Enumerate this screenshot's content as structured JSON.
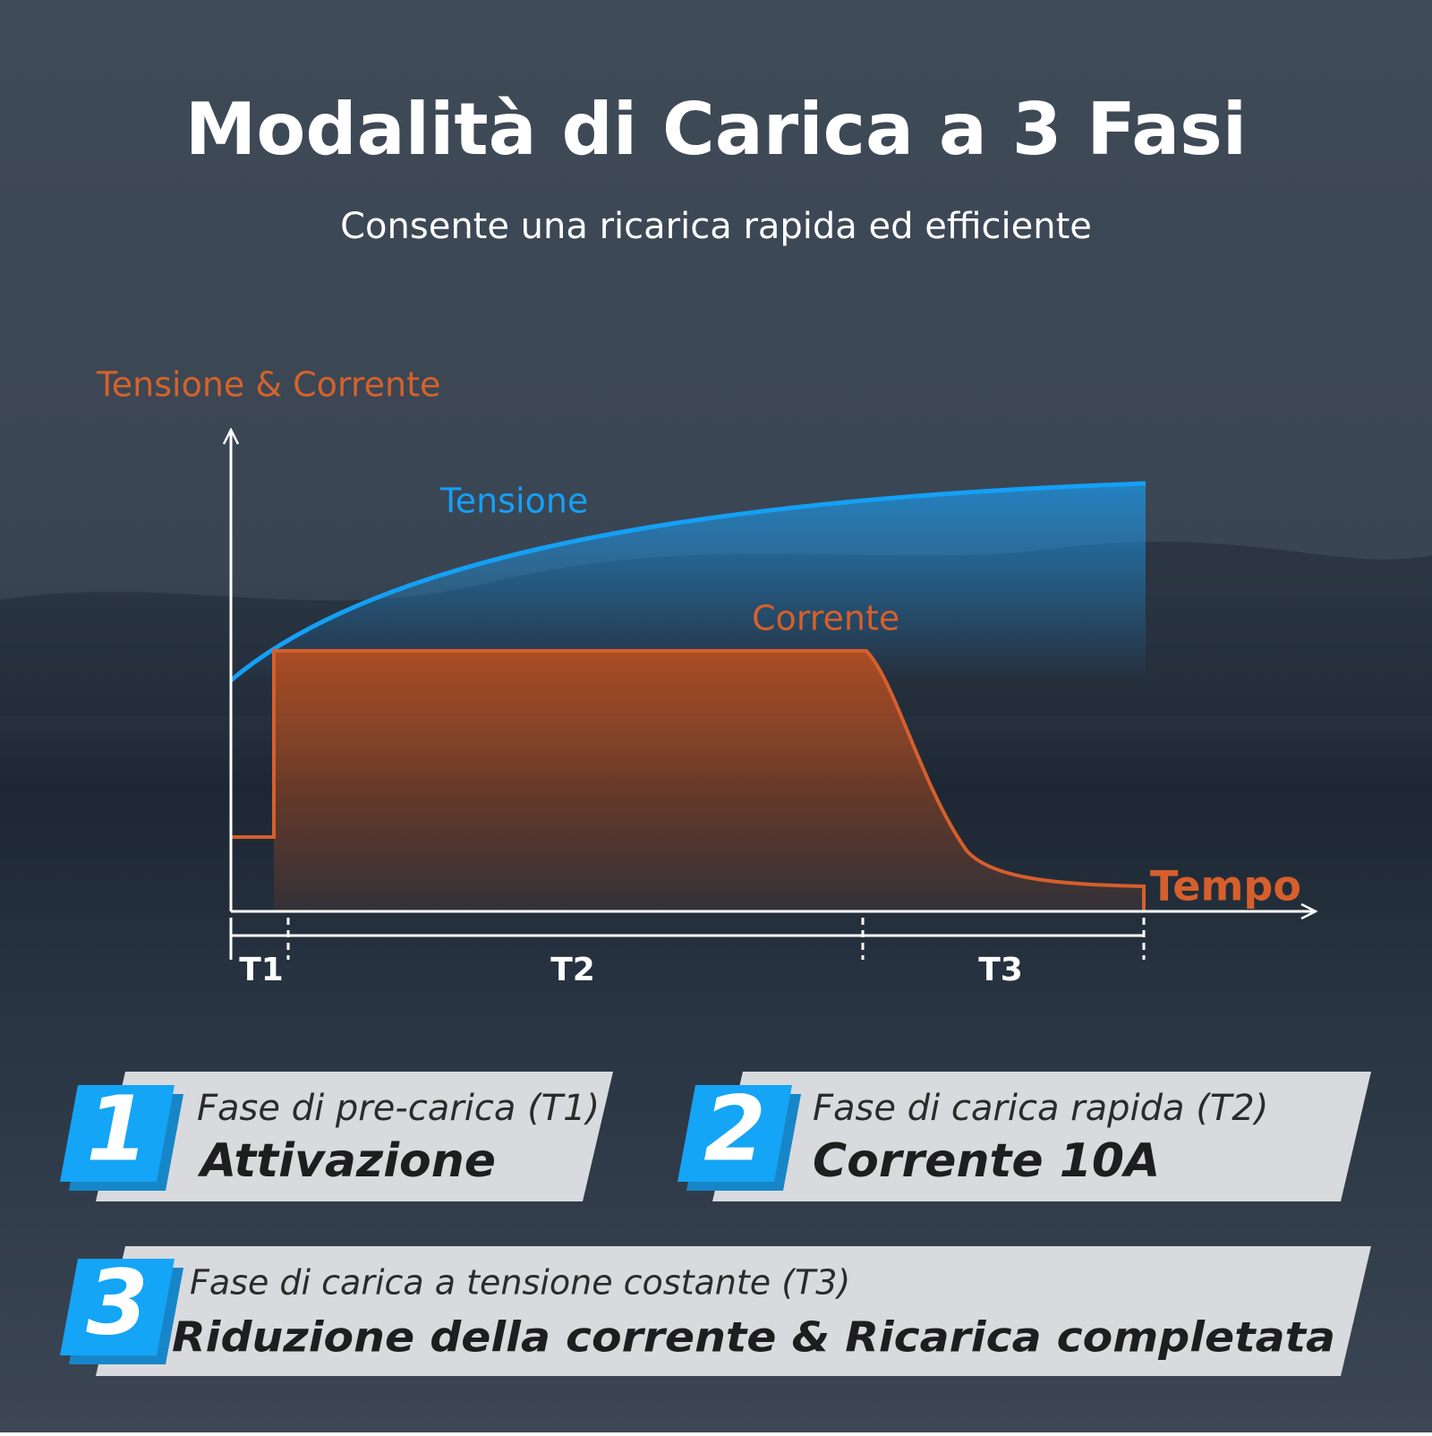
{
  "header": {
    "title": "Modalità di Carica a 3 Fasi",
    "subtitle": "Consente una ricarica rapida ed efficiente"
  },
  "diagram": {
    "y_axis_label": "Tensione & Corrente",
    "voltage_label": "Tensione",
    "current_label": "Corrente",
    "x_axis_label": "Tempo",
    "phases": [
      "T1",
      "T2",
      "T3"
    ]
  },
  "cards": [
    {
      "number": "1",
      "phase": "Fase di pre-carica (T1)",
      "headline": "Attivazione"
    },
    {
      "number": "2",
      "phase": "Fase di carica rapida (T2)",
      "headline": "Corrente 10A"
    },
    {
      "number": "3",
      "phase": "Fase di carica a tensione costante (T3)",
      "headline": "Riduzione della corrente & Ricarica completata"
    }
  ]
}
